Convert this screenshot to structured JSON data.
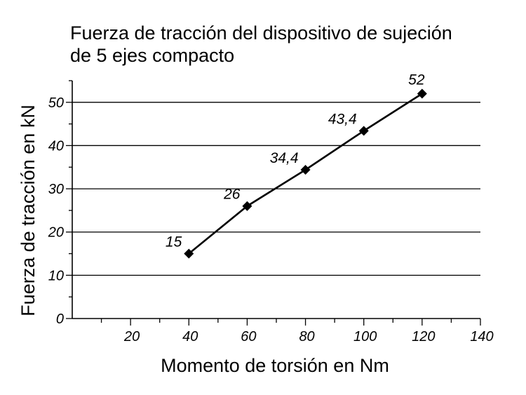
{
  "chart_data": {
    "type": "line",
    "title_lines": [
      "Fuerza de tracción del dispositivo de sujeción",
      "de 5 ejes compacto"
    ],
    "xlabel": "Momento de torsión en Nm",
    "ylabel": "Fuerza de tracción en kN",
    "xlim": [
      0,
      140
    ],
    "ylim": [
      0,
      55
    ],
    "x_ticks": [
      20,
      40,
      60,
      80,
      100,
      120,
      140
    ],
    "x_minor_ticks": [
      10,
      30,
      50,
      70,
      90,
      110,
      130
    ],
    "y_ticks": [
      0,
      10,
      20,
      30,
      40,
      50
    ],
    "y_minor_ticks": [
      5,
      15,
      25,
      35,
      45,
      55
    ],
    "grid": "horizontal",
    "series": [
      {
        "x": [
          40,
          60,
          80,
          100,
          120
        ],
        "values": [
          15,
          26,
          34.4,
          43.4,
          52
        ],
        "labels": [
          "15",
          "26",
          "34,4",
          "43,4",
          "52"
        ],
        "marker": "diamond",
        "color": "#000000"
      }
    ]
  }
}
